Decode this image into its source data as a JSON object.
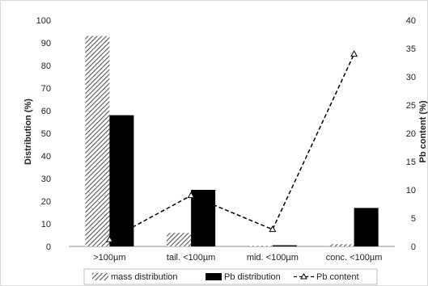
{
  "chart_data": {
    "type": "bar",
    "categories": [
      ">100µm",
      "tail. <100µm",
      "mid. <100µm",
      "conc. <100µm"
    ],
    "series": [
      {
        "name": "mass distribution",
        "axis": "left",
        "kind": "bar",
        "pattern": "hatched",
        "color": "#555555",
        "values": [
          93,
          6,
          0.3,
          1
        ]
      },
      {
        "name": "Pb distribution",
        "axis": "left",
        "kind": "bar",
        "pattern": "solid",
        "color": "#000000",
        "values": [
          58,
          25,
          0.5,
          17
        ]
      },
      {
        "name": "Pb content",
        "axis": "right",
        "kind": "line",
        "line_style": "dashed",
        "marker": "triangle",
        "color": "#000000",
        "values": [
          1.2,
          9,
          3,
          34
        ]
      }
    ],
    "ylabel": "Distribution (%)",
    "y2label": "Pb content (%)",
    "ylim": [
      0,
      100
    ],
    "y2lim": [
      0,
      40
    ],
    "yticks": [
      "0",
      "10",
      "20",
      "30",
      "40",
      "50",
      "60",
      "70",
      "80",
      "90",
      "100"
    ],
    "y2ticks": [
      "0",
      "5",
      "10",
      "15",
      "20",
      "25",
      "30",
      "35",
      "40"
    ],
    "grid": false,
    "legend_position": "bottom",
    "legend_labels": [
      "mass distribution",
      "Pb distribution",
      "Pb content"
    ]
  }
}
